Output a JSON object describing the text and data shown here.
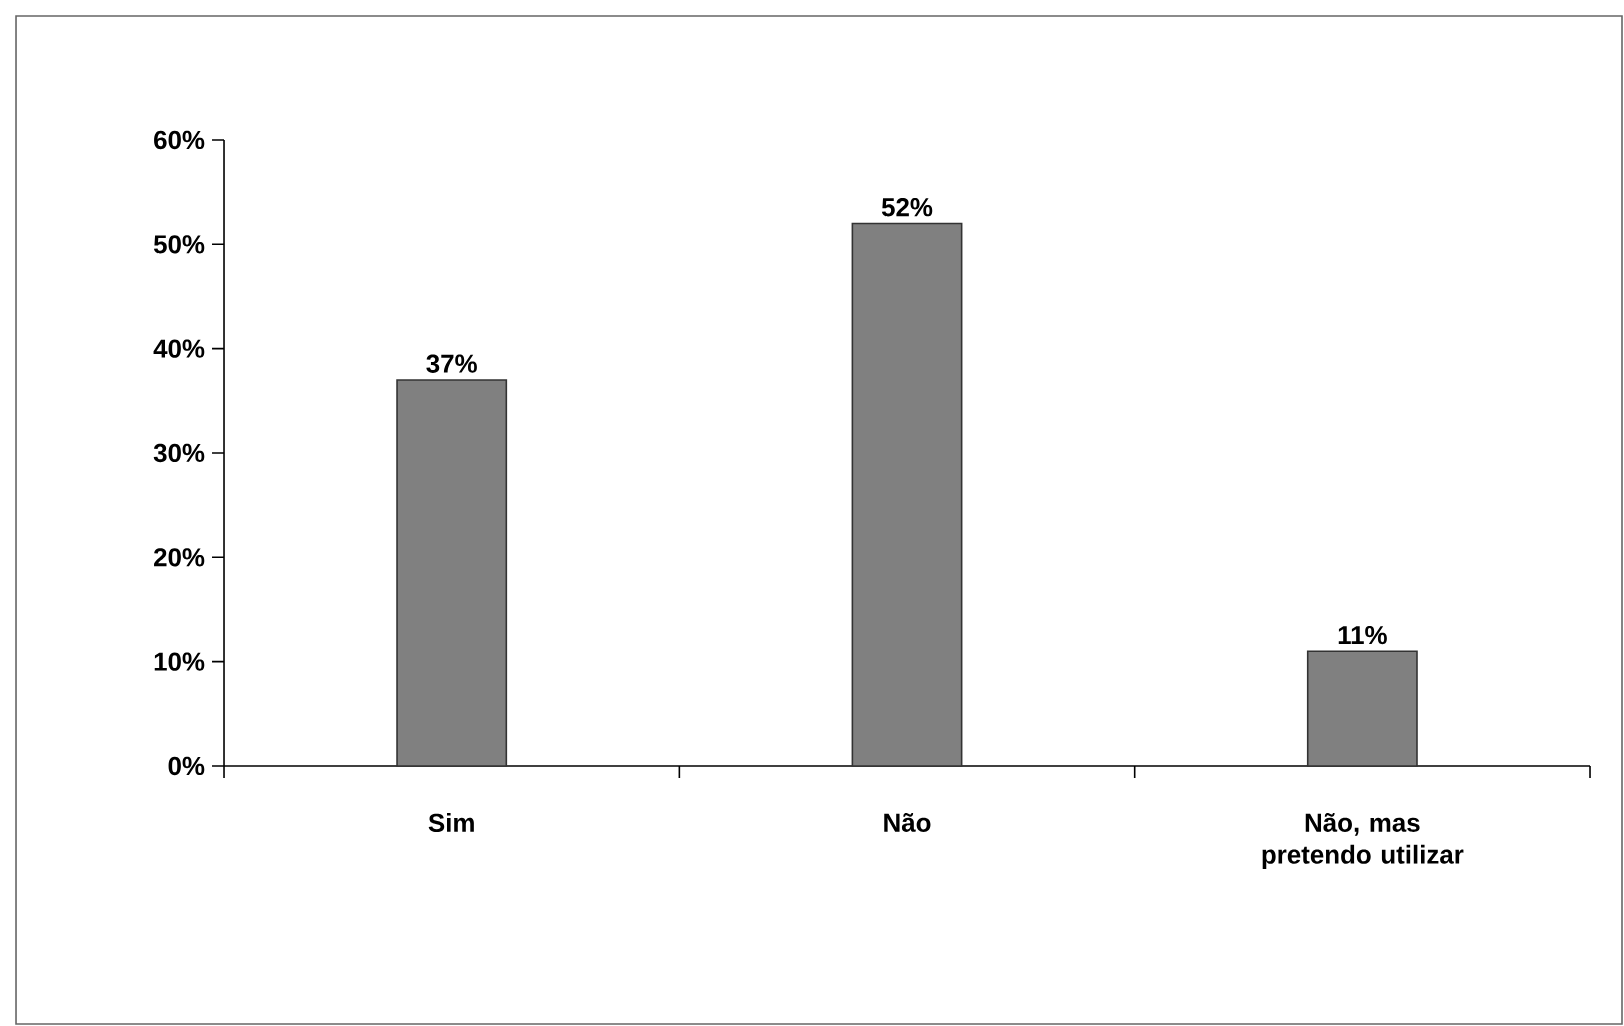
{
  "chart_data": {
    "type": "bar",
    "categories": [
      "Sim",
      "Não",
      "Não, mas pretendo utilizar"
    ],
    "values": [
      37,
      52,
      11
    ],
    "value_labels": [
      "37%",
      "52%",
      "11%"
    ],
    "color": "#808080",
    "ylim": [
      0,
      60
    ],
    "yticks": [
      {
        "value": 0,
        "label": "0%"
      },
      {
        "value": 10,
        "label": "10%"
      },
      {
        "value": 20,
        "label": "20%"
      },
      {
        "value": 30,
        "label": "30%"
      },
      {
        "value": 40,
        "label": "40%"
      },
      {
        "value": 50,
        "label": "50%"
      },
      {
        "value": 60,
        "label": "60%"
      }
    ],
    "grid": false
  }
}
